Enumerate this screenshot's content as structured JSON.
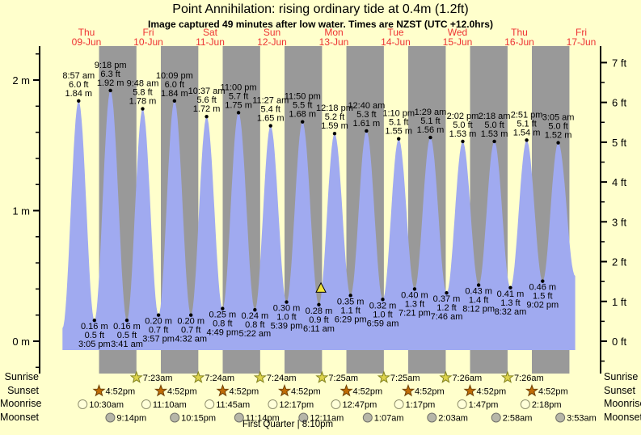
{
  "title": "Point Annihilation: rising  ordinary tide at 0.4m (1.2ft)",
  "subtitle": "Image captured 49 minutes after low water. Times are NZST (UTC +12.0hrs)",
  "colors": {
    "background": "#ffffcc",
    "day_band": "#ffffcc",
    "night_band": "#999999",
    "tide_fill": "#a0aaf0",
    "axis": "#000000",
    "day_label": "#ee3333",
    "annotation_text": "#000000",
    "marker_fill": "#f0e23c",
    "sunrise_star": "#ddd34a",
    "sunrise_star_edge": "#82821e",
    "sunset_star": "#c06c06",
    "sunset_star_edge": "#6e4004",
    "moonrise_circle": "#ffffd9",
    "moonrise_circle_edge": "#90906e",
    "moonset_circle": "#b6b6a8",
    "moonset_circle_edge": "#72726a"
  },
  "chart_data": {
    "type": "area",
    "title": "Point Annihilation: rising ordinary tide at 0.4m (1.2ft)",
    "subtitle": "Image captured 49 minutes after low water. Times are NZST (UTC +12.0hrs)",
    "x_axis": {
      "days": [
        {
          "weekday": "Thu",
          "date": "09-Jun"
        },
        {
          "weekday": "Fri",
          "date": "10-Jun"
        },
        {
          "weekday": "Sat",
          "date": "11-Jun"
        },
        {
          "weekday": "Sun",
          "date": "12-Jun"
        },
        {
          "weekday": "Mon",
          "date": "13-Jun"
        },
        {
          "weekday": "Tue",
          "date": "14-Jun"
        },
        {
          "weekday": "Wed",
          "date": "15-Jun"
        },
        {
          "weekday": "Thu",
          "date": "16-Jun"
        },
        {
          "weekday": "Fri",
          "date": "17-Jun"
        }
      ]
    },
    "y_axis_left": {
      "unit": "m",
      "ticks": [
        {
          "value": 2,
          "label": "2 m"
        },
        {
          "value": 1,
          "label": "1 m"
        },
        {
          "value": 0,
          "label": "0 m"
        }
      ]
    },
    "y_axis_right": {
      "unit": "ft",
      "ticks": [
        {
          "value": 7,
          "label": "7 ft"
        },
        {
          "value": 6,
          "label": "6 ft"
        },
        {
          "value": 5,
          "label": "5 ft"
        },
        {
          "value": 4,
          "label": "4 ft"
        },
        {
          "value": 3,
          "label": "3 ft"
        },
        {
          "value": 2,
          "label": "2 ft"
        },
        {
          "value": 1,
          "label": "1 ft"
        },
        {
          "value": 0,
          "label": "0 ft"
        }
      ]
    },
    "tide_extremes": [
      {
        "type": "high",
        "date": "09-Jun",
        "time": "8:57 am",
        "height_m": 1.84,
        "height_ft": 6.0
      },
      {
        "type": "low",
        "date": "09-Jun",
        "time": "3:05 pm",
        "height_m": 0.16,
        "height_ft": 0.5
      },
      {
        "type": "high",
        "date": "09-Jun",
        "time": "9:18 pm",
        "height_m": 1.92,
        "height_ft": 6.3
      },
      {
        "type": "low",
        "date": "10-Jun",
        "time": "3:41 am",
        "height_m": 0.16,
        "height_ft": 0.5
      },
      {
        "type": "high",
        "date": "10-Jun",
        "time": "9:48 am",
        "height_m": 1.78,
        "height_ft": 5.8
      },
      {
        "type": "low",
        "date": "10-Jun",
        "time": "3:57 pm",
        "height_m": 0.2,
        "height_ft": 0.7
      },
      {
        "type": "high",
        "date": "10-Jun",
        "time": "10:09 pm",
        "height_m": 1.84,
        "height_ft": 6.0
      },
      {
        "type": "low",
        "date": "11-Jun",
        "time": "4:32 am",
        "height_m": 0.2,
        "height_ft": 0.7
      },
      {
        "type": "high",
        "date": "11-Jun",
        "time": "10:37 am",
        "height_m": 1.72,
        "height_ft": 5.6
      },
      {
        "type": "low",
        "date": "11-Jun",
        "time": "4:49 pm",
        "height_m": 0.25,
        "height_ft": 0.8
      },
      {
        "type": "high",
        "date": "11-Jun",
        "time": "11:00 pm",
        "height_m": 1.75,
        "height_ft": 5.7
      },
      {
        "type": "low",
        "date": "12-Jun",
        "time": "5:22 am",
        "height_m": 0.24,
        "height_ft": 0.8
      },
      {
        "type": "high",
        "date": "12-Jun",
        "time": "11:27 am",
        "height_m": 1.65,
        "height_ft": 5.4
      },
      {
        "type": "low",
        "date": "12-Jun",
        "time": "5:39 pm",
        "height_m": 0.3,
        "height_ft": 1.0
      },
      {
        "type": "high",
        "date": "12-Jun",
        "time": "11:50 pm",
        "height_m": 1.68,
        "height_ft": 5.5
      },
      {
        "type": "low",
        "date": "13-Jun",
        "time": "6:11 am",
        "height_m": 0.28,
        "height_ft": 0.9
      },
      {
        "type": "high",
        "date": "13-Jun",
        "time": "12:18 pm",
        "height_m": 1.59,
        "height_ft": 5.2
      },
      {
        "type": "low",
        "date": "13-Jun",
        "time": "6:29 pm",
        "height_m": 0.35,
        "height_ft": 1.1
      },
      {
        "type": "high",
        "date": "14-Jun",
        "time": "12:40 am",
        "height_m": 1.61,
        "height_ft": 5.3
      },
      {
        "type": "low",
        "date": "14-Jun",
        "time": "6:59 am",
        "height_m": 0.32,
        "height_ft": 1.0
      },
      {
        "type": "high",
        "date": "14-Jun",
        "time": "1:10 pm",
        "height_m": 1.55,
        "height_ft": 5.1
      },
      {
        "type": "low",
        "date": "14-Jun",
        "time": "7:21 pm",
        "height_m": 0.4,
        "height_ft": 1.3
      },
      {
        "type": "high",
        "date": "15-Jun",
        "time": "1:29 am",
        "height_m": 1.56,
        "height_ft": 5.1
      },
      {
        "type": "low",
        "date": "15-Jun",
        "time": "7:46 am",
        "height_m": 0.37,
        "height_ft": 1.2
      },
      {
        "type": "high",
        "date": "15-Jun",
        "time": "2:02 pm",
        "height_m": 1.53,
        "height_ft": 5.0
      },
      {
        "type": "low",
        "date": "15-Jun",
        "time": "8:12 pm",
        "height_m": 0.43,
        "height_ft": 1.4
      },
      {
        "type": "high",
        "date": "16-Jun",
        "time": "2:18 am",
        "height_m": 1.53,
        "height_ft": 5.0
      },
      {
        "type": "low",
        "date": "16-Jun",
        "time": "8:32 am",
        "height_m": 0.41,
        "height_ft": 1.3
      },
      {
        "type": "high",
        "date": "16-Jun",
        "time": "2:51 pm",
        "height_m": 1.54,
        "height_ft": 5.1
      },
      {
        "type": "low",
        "date": "16-Jun",
        "time": "9:02 pm",
        "height_m": 0.46,
        "height_ft": 1.5
      },
      {
        "type": "high",
        "date": "17-Jun",
        "time": "3:05 am",
        "height_m": 1.52,
        "height_ft": 5.0
      }
    ],
    "current_marker": {
      "shape": "triangle",
      "date": "13-Jun",
      "time": "7:00 am",
      "height_m": 0.4,
      "note": "captured 49 minutes after low water"
    }
  },
  "astro": {
    "rows": [
      {
        "label": "Sunrise",
        "icon": "sunrise-star",
        "events": [
          {
            "date": "10-Jun",
            "time": "7:23am"
          },
          {
            "date": "11-Jun",
            "time": "7:24am"
          },
          {
            "date": "12-Jun",
            "time": "7:24am"
          },
          {
            "date": "13-Jun",
            "time": "7:25am"
          },
          {
            "date": "14-Jun",
            "time": "7:25am"
          },
          {
            "date": "15-Jun",
            "time": "7:26am"
          },
          {
            "date": "16-Jun",
            "time": "7:26am"
          }
        ]
      },
      {
        "label": "Sunset",
        "icon": "sunset-star",
        "events": [
          {
            "date": "09-Jun",
            "time": "4:52pm"
          },
          {
            "date": "10-Jun",
            "time": "4:52pm"
          },
          {
            "date": "11-Jun",
            "time": "4:52pm"
          },
          {
            "date": "12-Jun",
            "time": "4:52pm"
          },
          {
            "date": "13-Jun",
            "time": "4:52pm"
          },
          {
            "date": "14-Jun",
            "time": "4:52pm"
          },
          {
            "date": "15-Jun",
            "time": "4:52pm"
          },
          {
            "date": "16-Jun",
            "time": "4:52pm"
          }
        ]
      },
      {
        "label": "Moonrise",
        "icon": "moonrise-circle",
        "events": [
          {
            "date": "09-Jun",
            "time": "10:30am"
          },
          {
            "date": "10-Jun",
            "time": "11:10am"
          },
          {
            "date": "11-Jun",
            "time": "11:45am"
          },
          {
            "date": "12-Jun",
            "time": "12:17pm"
          },
          {
            "date": "13-Jun",
            "time": "12:47pm"
          },
          {
            "date": "14-Jun",
            "time": "1:17pm"
          },
          {
            "date": "15-Jun",
            "time": "1:47pm"
          },
          {
            "date": "16-Jun",
            "time": "2:18pm"
          }
        ]
      },
      {
        "label": "Moonset",
        "icon": "moonset-circle",
        "events": [
          {
            "date": "09-Jun",
            "time": "9:14pm"
          },
          {
            "date": "10-Jun",
            "time": "10:15pm"
          },
          {
            "date": "11-Jun",
            "time": "11:14pm"
          },
          {
            "date": "13-Jun",
            "time": "12:11am"
          },
          {
            "date": "14-Jun",
            "time": "1:07am"
          },
          {
            "date": "15-Jun",
            "time": "2:03am"
          },
          {
            "date": "16-Jun",
            "time": "2:58am"
          },
          {
            "date": "17-Jun",
            "time": "3:53am"
          }
        ]
      }
    ],
    "moon_phase": "First Quarter | 8:10pm"
  }
}
